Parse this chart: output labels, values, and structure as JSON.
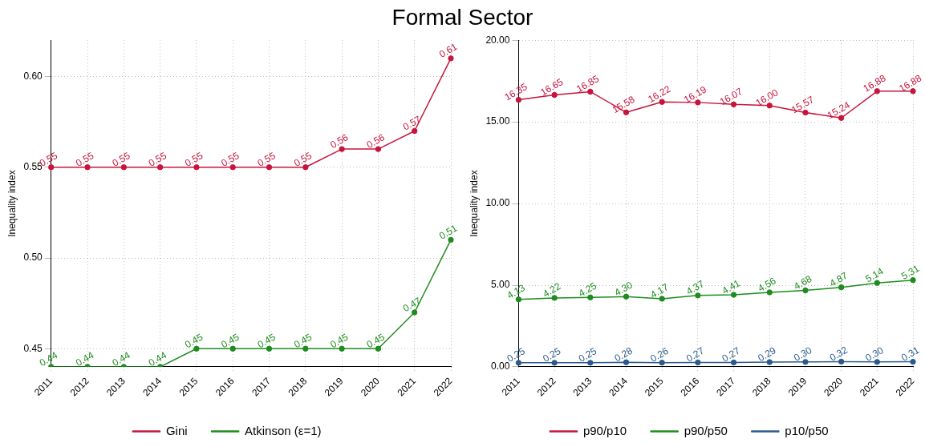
{
  "chart_data": [
    {
      "type": "line",
      "title": "Formal Sector",
      "ylabel": "Inequality index",
      "categories": [
        "2011",
        "2012",
        "2013",
        "2014",
        "2015",
        "2016",
        "2017",
        "2018",
        "2019",
        "2020",
        "2021",
        "2022"
      ],
      "series": [
        {
          "name": "Gini",
          "color": "#c8143c",
          "values": [
            0.55,
            0.55,
            0.55,
            0.55,
            0.55,
            0.55,
            0.55,
            0.55,
            0.56,
            0.56,
            0.57,
            0.61
          ],
          "value_labels": [
            "0.55",
            "0.55",
            "0.55",
            "0.55",
            "0.55",
            "0.55",
            "0.55",
            "0.55",
            "0.56",
            "0.56",
            "0.57",
            "0.61"
          ]
        },
        {
          "name": "Atkinson (ε=1)",
          "color": "#1e8c1e",
          "values": [
            0.44,
            0.44,
            0.44,
            0.44,
            0.45,
            0.45,
            0.45,
            0.45,
            0.45,
            0.45,
            0.47,
            0.51
          ],
          "value_labels": [
            "0.44",
            "0.44",
            "0.44",
            "0.44",
            "0.45",
            "0.45",
            "0.45",
            "0.45",
            "0.45",
            "0.45",
            "0.47",
            "0.51"
          ]
        }
      ],
      "ylim": [
        0.44,
        0.62
      ],
      "yticks": [
        {
          "value": 0.45,
          "label": "0.45"
        },
        {
          "value": 0.5,
          "label": "0.50"
        },
        {
          "value": 0.55,
          "label": "0.55"
        },
        {
          "value": 0.6,
          "label": "0.60"
        }
      ],
      "grid": true,
      "legend": "bottom",
      "marker": "circle",
      "line_style": "solid"
    },
    {
      "type": "line",
      "ylabel": "Inequality index",
      "categories": [
        "2011",
        "2012",
        "2013",
        "2014",
        "2015",
        "2016",
        "2017",
        "2018",
        "2019",
        "2020",
        "2021",
        "2022"
      ],
      "series": [
        {
          "name": "p90/p10",
          "color": "#c8143c",
          "values": [
            16.35,
            16.65,
            16.85,
            15.58,
            16.22,
            16.19,
            16.07,
            16.0,
            15.57,
            15.24,
            16.88,
            16.88
          ],
          "value_labels": [
            "16.35",
            "16.65",
            "16.85",
            "15.58",
            "16.22",
            "16.19",
            "16.07",
            "16.00",
            "15.57",
            "15.24",
            "16.88",
            "16.88"
          ]
        },
        {
          "name": "p90/p50",
          "color": "#1e8c1e",
          "values": [
            4.13,
            4.22,
            4.25,
            4.3,
            4.17,
            4.37,
            4.41,
            4.56,
            4.68,
            4.87,
            5.14,
            5.31
          ],
          "value_labels": [
            "4.13",
            "4.22",
            "4.25",
            "4.30",
            "4.17",
            "4.37",
            "4.41",
            "4.56",
            "4.68",
            "4.87",
            "5.14",
            "5.31"
          ]
        },
        {
          "name": "p10/p50",
          "color": "#2a5a8c",
          "values": [
            0.25,
            0.25,
            0.25,
            0.28,
            0.26,
            0.27,
            0.27,
            0.29,
            0.3,
            0.32,
            0.3,
            0.31
          ],
          "value_labels": [
            "0.25",
            "0.25",
            "0.25",
            "0.28",
            "0.26",
            "0.27",
            "0.27",
            "0.29",
            "0.30",
            "0.32",
            "0.30",
            "0.31"
          ]
        }
      ],
      "ylim": [
        0,
        20
      ],
      "yticks": [
        {
          "value": 0,
          "label": "0.00"
        },
        {
          "value": 5,
          "label": "5.00"
        },
        {
          "value": 10,
          "label": "10.00"
        },
        {
          "value": 15,
          "label": "15.00"
        },
        {
          "value": 20,
          "label": "20.00"
        }
      ],
      "grid": true,
      "legend": "bottom",
      "marker": "circle",
      "line_style": "solid"
    }
  ]
}
